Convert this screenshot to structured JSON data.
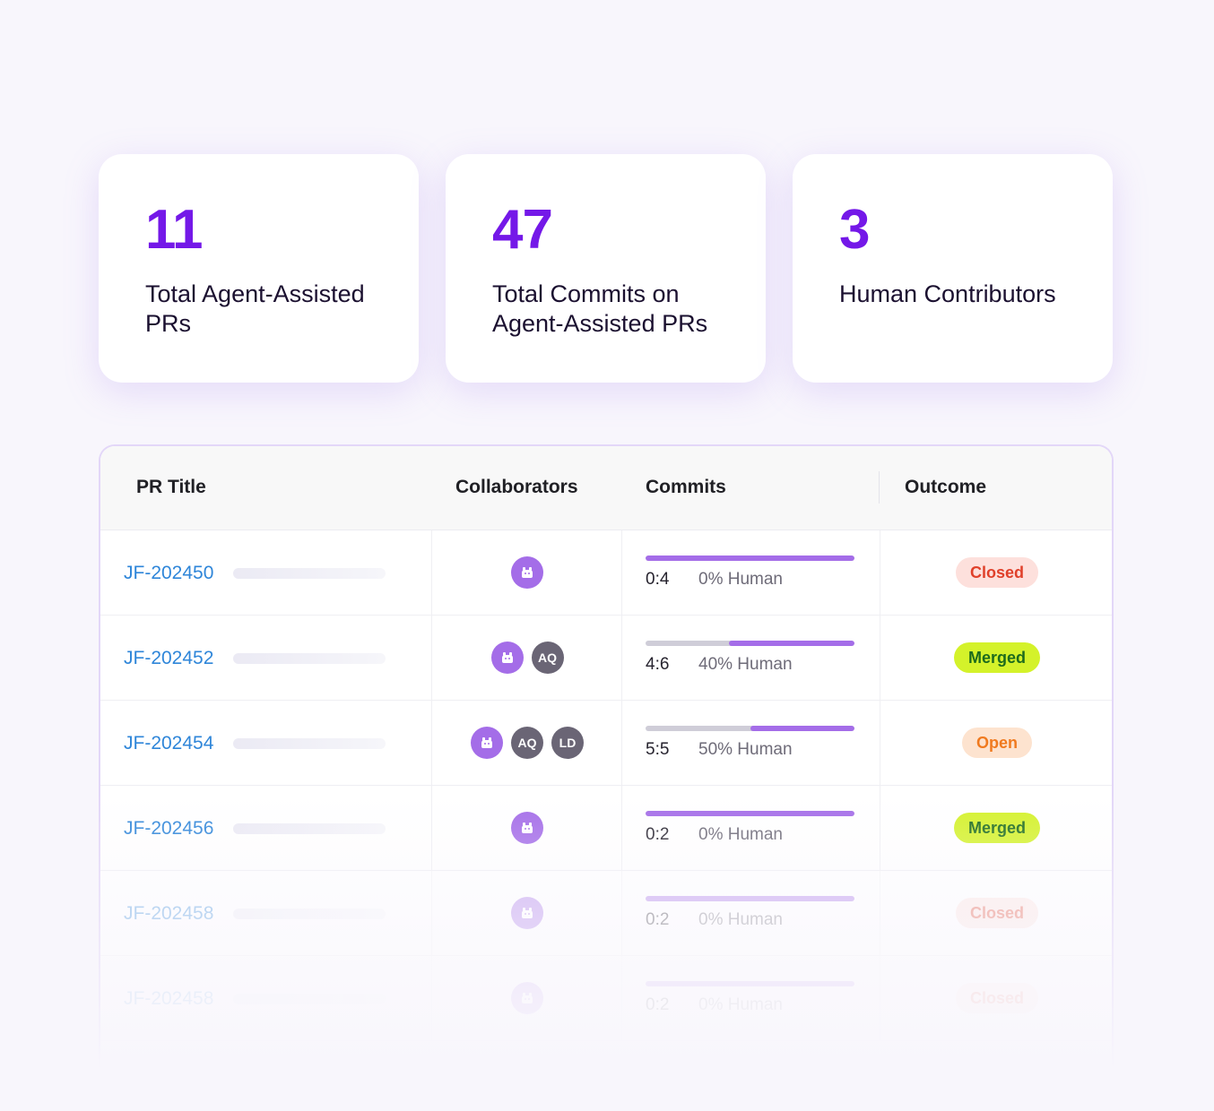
{
  "stats": [
    {
      "value": "11",
      "label": "Total Agent-Assisted PRs"
    },
    {
      "value": "47",
      "label": "Total Commits on Agent-Assisted PRs"
    },
    {
      "value": "3",
      "label": "Human Contributors"
    }
  ],
  "table": {
    "headers": {
      "title": "PR Title",
      "collaborators": "Collaborators",
      "commits": "Commits",
      "outcome": "Outcome"
    },
    "rows": [
      {
        "id": "JF-202450",
        "collaborators": [
          "bot"
        ],
        "ratio": "0:4",
        "human_fraction": 0.0,
        "human_label": "0% Human",
        "outcome": "Closed",
        "outcome_type": "closed"
      },
      {
        "id": "JF-202452",
        "collaborators": [
          "bot",
          "AQ"
        ],
        "ratio": "4:6",
        "human_fraction": 0.4,
        "human_label": "40% Human",
        "outcome": "Merged",
        "outcome_type": "merged"
      },
      {
        "id": "JF-202454",
        "collaborators": [
          "bot",
          "AQ",
          "LD"
        ],
        "ratio": "5:5",
        "human_fraction": 0.5,
        "human_label": "50% Human",
        "outcome": "Open",
        "outcome_type": "open"
      },
      {
        "id": "JF-202456",
        "collaborators": [
          "bot"
        ],
        "ratio": "0:2",
        "human_fraction": 0.0,
        "human_label": "0% Human",
        "outcome": "Merged",
        "outcome_type": "merged"
      },
      {
        "id": "JF-202458",
        "collaborators": [
          "bot"
        ],
        "ratio": "0:2",
        "human_fraction": 0.0,
        "human_label": "0% Human",
        "outcome": "Closed",
        "outcome_type": "closed"
      },
      {
        "id": "JF-202458",
        "collaborators": [
          "bot"
        ],
        "ratio": "0:2",
        "human_fraction": 0.0,
        "human_label": "0% Human",
        "outcome": "Closed",
        "outcome_type": "closed"
      }
    ]
  },
  "colors": {
    "accent": "#7418e8",
    "agent": "#a46de8",
    "link": "#2f86d9",
    "closed_bg": "#fde0dc",
    "closed_text": "#e0402a",
    "merged_bg": "#d4f22a",
    "merged_text": "#1d6b1d",
    "open_bg": "#fde3cf",
    "open_text": "#f07a1f"
  },
  "icons": {
    "agent_avatar": "robot-icon"
  }
}
